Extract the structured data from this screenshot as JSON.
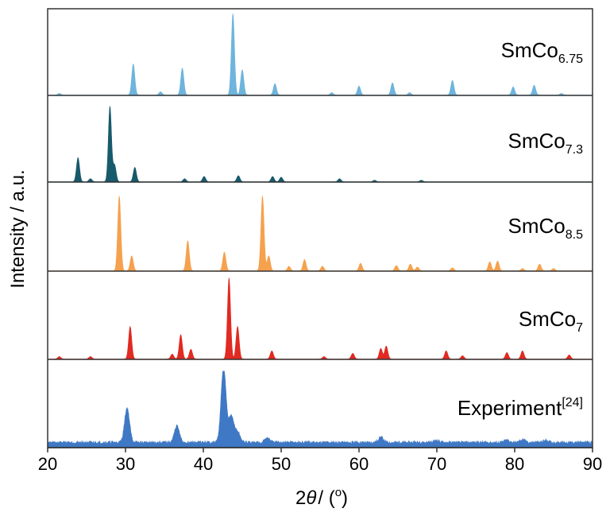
{
  "chart_data": {
    "type": "area",
    "x_label": "2θ / (°)",
    "x_label_var": "θ",
    "x_label_prefix": "2",
    "x_label_suffix": "/ (",
    "x_label_degree": "o",
    "x_label_close": ")",
    "y_label": "Intensity / a.u.",
    "xlim": [
      20,
      90
    ],
    "x_ticks": [
      "20",
      "30",
      "40",
      "50",
      "60",
      "70",
      "80",
      "90"
    ],
    "grid": false,
    "panels": [
      {
        "name": "SmCo6.75",
        "label_main": "SmCo",
        "label_sub": "6.75",
        "color": "#6fb4dc",
        "peaks": [
          [
            31.0,
            0.38
          ],
          [
            37.3,
            0.33
          ],
          [
            43.8,
            1.0
          ],
          [
            45.0,
            0.31
          ],
          [
            49.2,
            0.14
          ],
          [
            60.0,
            0.11
          ],
          [
            64.3,
            0.15
          ],
          [
            72.0,
            0.18
          ],
          [
            79.8,
            0.1
          ],
          [
            82.5,
            0.12
          ],
          [
            34.5,
            0.04
          ],
          [
            21.5,
            0.02
          ],
          [
            56.5,
            0.03
          ],
          [
            66.5,
            0.03
          ],
          [
            86.0,
            0.02
          ]
        ]
      },
      {
        "name": "SmCo7.3",
        "label_main": "SmCo",
        "label_sub": "7.3",
        "color": "#175a6b",
        "peaks": [
          [
            23.9,
            0.32
          ],
          [
            28.0,
            1.0
          ],
          [
            28.6,
            0.22
          ],
          [
            31.2,
            0.19
          ],
          [
            37.6,
            0.04
          ],
          [
            40.1,
            0.07
          ],
          [
            44.5,
            0.08
          ],
          [
            48.9,
            0.07
          ],
          [
            50.0,
            0.06
          ],
          [
            57.5,
            0.04
          ],
          [
            62.0,
            0.02
          ],
          [
            68.0,
            0.02
          ],
          [
            25.5,
            0.04
          ]
        ]
      },
      {
        "name": "SmCo8.5",
        "label_main": "SmCo",
        "label_sub": "8.5",
        "color": "#f5a14e",
        "peaks": [
          [
            29.2,
            1.0
          ],
          [
            30.8,
            0.2
          ],
          [
            38.0,
            0.4
          ],
          [
            42.7,
            0.25
          ],
          [
            47.6,
            1.0
          ],
          [
            48.4,
            0.2
          ],
          [
            51.0,
            0.06
          ],
          [
            53.0,
            0.15
          ],
          [
            55.3,
            0.06
          ],
          [
            60.2,
            0.1
          ],
          [
            64.8,
            0.07
          ],
          [
            66.6,
            0.09
          ],
          [
            67.5,
            0.05
          ],
          [
            72.0,
            0.04
          ],
          [
            76.8,
            0.12
          ],
          [
            77.8,
            0.13
          ],
          [
            81.0,
            0.03
          ],
          [
            83.2,
            0.09
          ],
          [
            85.0,
            0.03
          ]
        ]
      },
      {
        "name": "SmCo7",
        "label_main": "SmCo",
        "label_sub": "7",
        "color": "#e02a22",
        "peaks": [
          [
            30.6,
            0.4
          ],
          [
            36.0,
            0.06
          ],
          [
            37.1,
            0.3
          ],
          [
            38.4,
            0.12
          ],
          [
            43.3,
            1.0
          ],
          [
            44.4,
            0.4
          ],
          [
            48.8,
            0.1
          ],
          [
            55.5,
            0.03
          ],
          [
            59.2,
            0.07
          ],
          [
            62.8,
            0.13
          ],
          [
            63.5,
            0.16
          ],
          [
            71.2,
            0.1
          ],
          [
            73.3,
            0.04
          ],
          [
            79.0,
            0.08
          ],
          [
            81.0,
            0.1
          ],
          [
            87.0,
            0.05
          ],
          [
            21.5,
            0.03
          ],
          [
            25.5,
            0.03
          ]
        ]
      },
      {
        "name": "Experiment",
        "label_main": "Experiment",
        "label_sup": "[24]",
        "color": "#3f78c4",
        "peaks": [
          [
            30.2,
            0.46
          ],
          [
            36.6,
            0.22
          ],
          [
            42.6,
            1.0
          ],
          [
            43.6,
            0.35
          ],
          [
            44.4,
            0.14
          ],
          [
            48.2,
            0.06
          ],
          [
            62.8,
            0.07
          ],
          [
            70.0,
            0.03
          ],
          [
            79.0,
            0.03
          ],
          [
            81.0,
            0.04
          ],
          [
            84.0,
            0.03
          ]
        ]
      }
    ]
  }
}
